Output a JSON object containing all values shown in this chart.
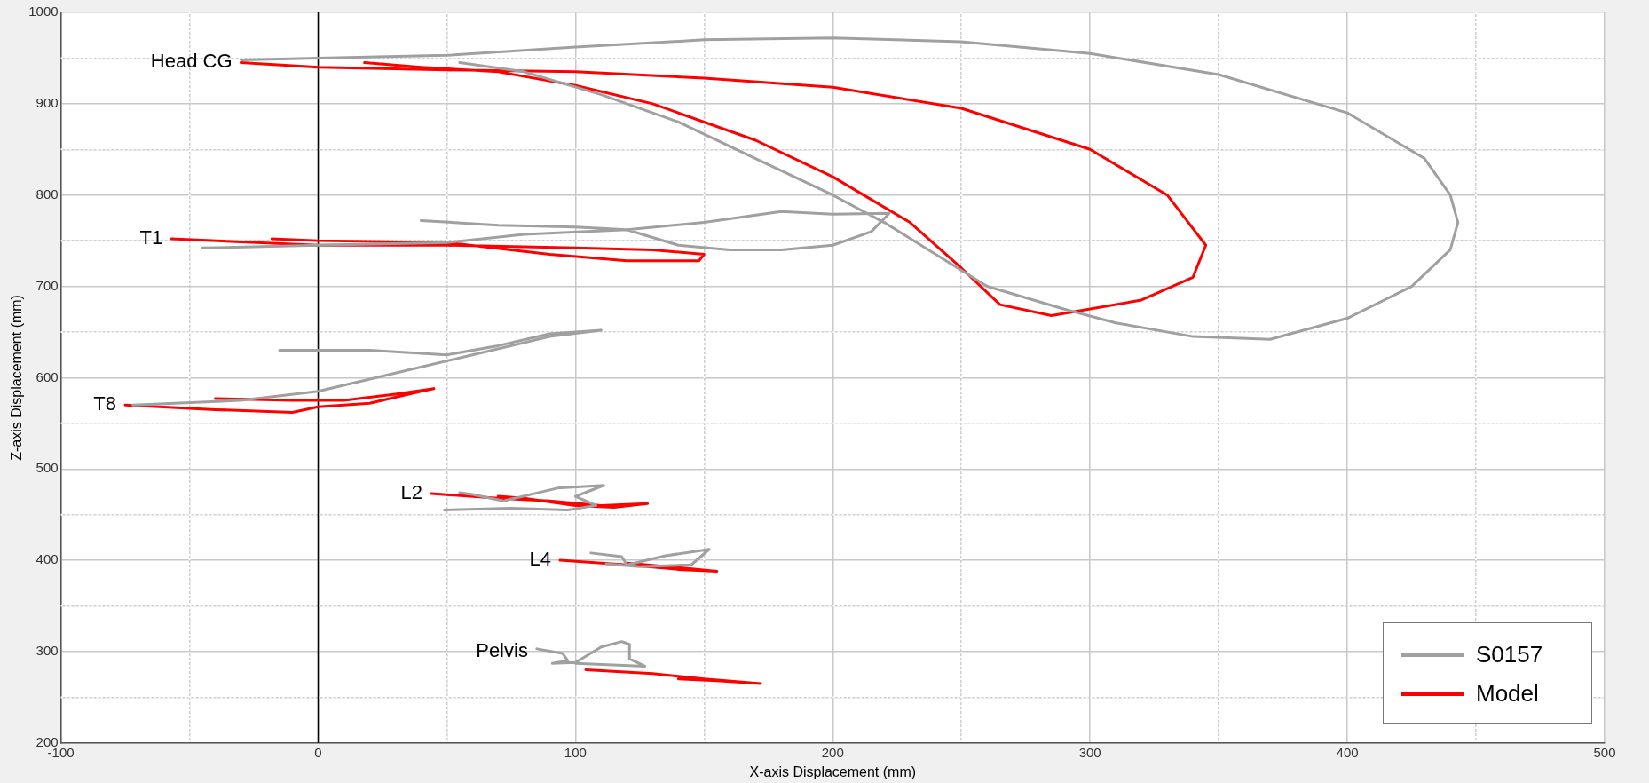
{
  "chart_data": {
    "type": "line",
    "xlabel": "X-axis Displacement (mm)",
    "ylabel": "Z-axis Displacement (mm)",
    "xlim": [
      -100,
      500
    ],
    "ylim": [
      200,
      1000
    ],
    "xticks": [
      -100,
      {
        "value": -50,
        "label": null
      },
      0,
      {
        "value": 50,
        "label": null
      },
      100,
      {
        "value": 150,
        "label": null
      },
      200,
      {
        "value": 250,
        "label": null
      },
      300,
      {
        "value": 350,
        "label": null
      },
      400,
      {
        "value": 450,
        "label": null
      },
      500
    ],
    "yticks": [
      200,
      {
        "value": 250,
        "label": null
      },
      300,
      {
        "value": 350,
        "label": null
      },
      400,
      {
        "value": 450,
        "label": null
      },
      500,
      {
        "value": 550,
        "label": null
      },
      600,
      {
        "value": 650,
        "label": null
      },
      700,
      {
        "value": 750,
        "label": null
      },
      800,
      {
        "value": 850,
        "label": null
      },
      900,
      {
        "value": 950,
        "label": null
      },
      1000
    ],
    "grid": true,
    "legend": "bottom right",
    "marker": "none",
    "line_style": "solid",
    "ref_lines": [
      {
        "axis": "x",
        "value": 0,
        "color": "#000000"
      }
    ],
    "annotations": [
      {
        "text": "Head CG",
        "x": -30,
        "y": 946
      },
      {
        "text": "T1",
        "x": -57,
        "y": 752
      },
      {
        "text": "T8",
        "x": -75,
        "y": 570
      },
      {
        "text": "L2",
        "x": 44,
        "y": 473
      },
      {
        "text": "L4",
        "x": 94,
        "y": 400
      },
      {
        "text": "Pelvis",
        "x": 85,
        "y": 300
      }
    ],
    "series": [
      {
        "name": "S0157",
        "color": "#a0a0a0",
        "x": [
          -30,
          0,
          50,
          100,
          150,
          200,
          250,
          300,
          350,
          400,
          430,
          440,
          443,
          440,
          425,
          400,
          370,
          340,
          310,
          290,
          260,
          240,
          220,
          200,
          170,
          140,
          110,
          80,
          55,
          null,
          -45,
          0,
          50,
          80,
          120,
          150,
          180,
          200,
          222,
          215,
          200,
          180,
          160,
          140,
          120,
          100,
          70,
          40,
          null,
          -72,
          -30,
          0,
          30,
          60,
          90,
          110,
          90,
          70,
          50,
          20,
          -15,
          null,
          49,
          75,
          97,
          108,
          100,
          111,
          93,
          72,
          60,
          55,
          null,
          106,
          118,
          120,
          135,
          152,
          145,
          125,
          112,
          null,
          85,
          95,
          97,
          91,
          100,
          110,
          118,
          121,
          121,
          127,
          100
        ],
        "values": [
          948,
          950,
          953,
          962,
          970,
          972,
          968,
          955,
          932,
          890,
          840,
          800,
          770,
          740,
          700,
          665,
          642,
          645,
          660,
          675,
          700,
          735,
          770,
          800,
          840,
          880,
          910,
          935,
          945,
          null,
          742,
          745,
          748,
          757,
          762,
          770,
          782,
          779,
          780,
          760,
          745,
          740,
          740,
          745,
          762,
          765,
          767,
          772,
          null,
          570,
          575,
          585,
          605,
          625,
          645,
          652,
          648,
          635,
          625,
          630,
          630,
          null,
          455,
          457,
          455,
          460,
          470,
          482,
          479,
          465,
          472,
          474,
          null,
          408,
          404,
          395,
          405,
          412,
          395,
          393,
          396,
          null,
          303,
          298,
          290,
          287,
          288,
          305,
          311,
          308,
          292,
          284,
          287
        ]
      },
      {
        "name": "Model",
        "color": "#ff0000",
        "x": [
          -30,
          0,
          50,
          100,
          150,
          200,
          250,
          300,
          330,
          345,
          340,
          320,
          285,
          265,
          250,
          230,
          200,
          170,
          130,
          100,
          70,
          40,
          18,
          null,
          -57,
          0,
          50,
          100,
          130,
          150,
          148,
          120,
          90,
          50,
          0,
          -18,
          null,
          -75,
          -40,
          -10,
          0,
          20,
          40,
          45,
          30,
          10,
          -10,
          -40,
          null,
          44,
          70,
          90,
          110,
          128,
          115,
          100,
          80,
          70,
          null,
          94,
          120,
          140,
          155,
          140,
          120,
          null,
          104,
          130,
          150,
          172,
          155,
          140
        ],
        "values": [
          945,
          940,
          937,
          935,
          928,
          918,
          895,
          850,
          800,
          745,
          710,
          685,
          668,
          680,
          720,
          770,
          820,
          860,
          900,
          920,
          935,
          940,
          945,
          null,
          752,
          745,
          745,
          742,
          740,
          735,
          728,
          728,
          735,
          748,
          750,
          752,
          null,
          570,
          565,
          562,
          568,
          572,
          585,
          588,
          582,
          575,
          575,
          577,
          null,
          473,
          468,
          465,
          460,
          462,
          458,
          460,
          468,
          470,
          null,
          400,
          395,
          390,
          388,
          392,
          397,
          null,
          280,
          276,
          270,
          265,
          268,
          270
        ]
      }
    ]
  }
}
